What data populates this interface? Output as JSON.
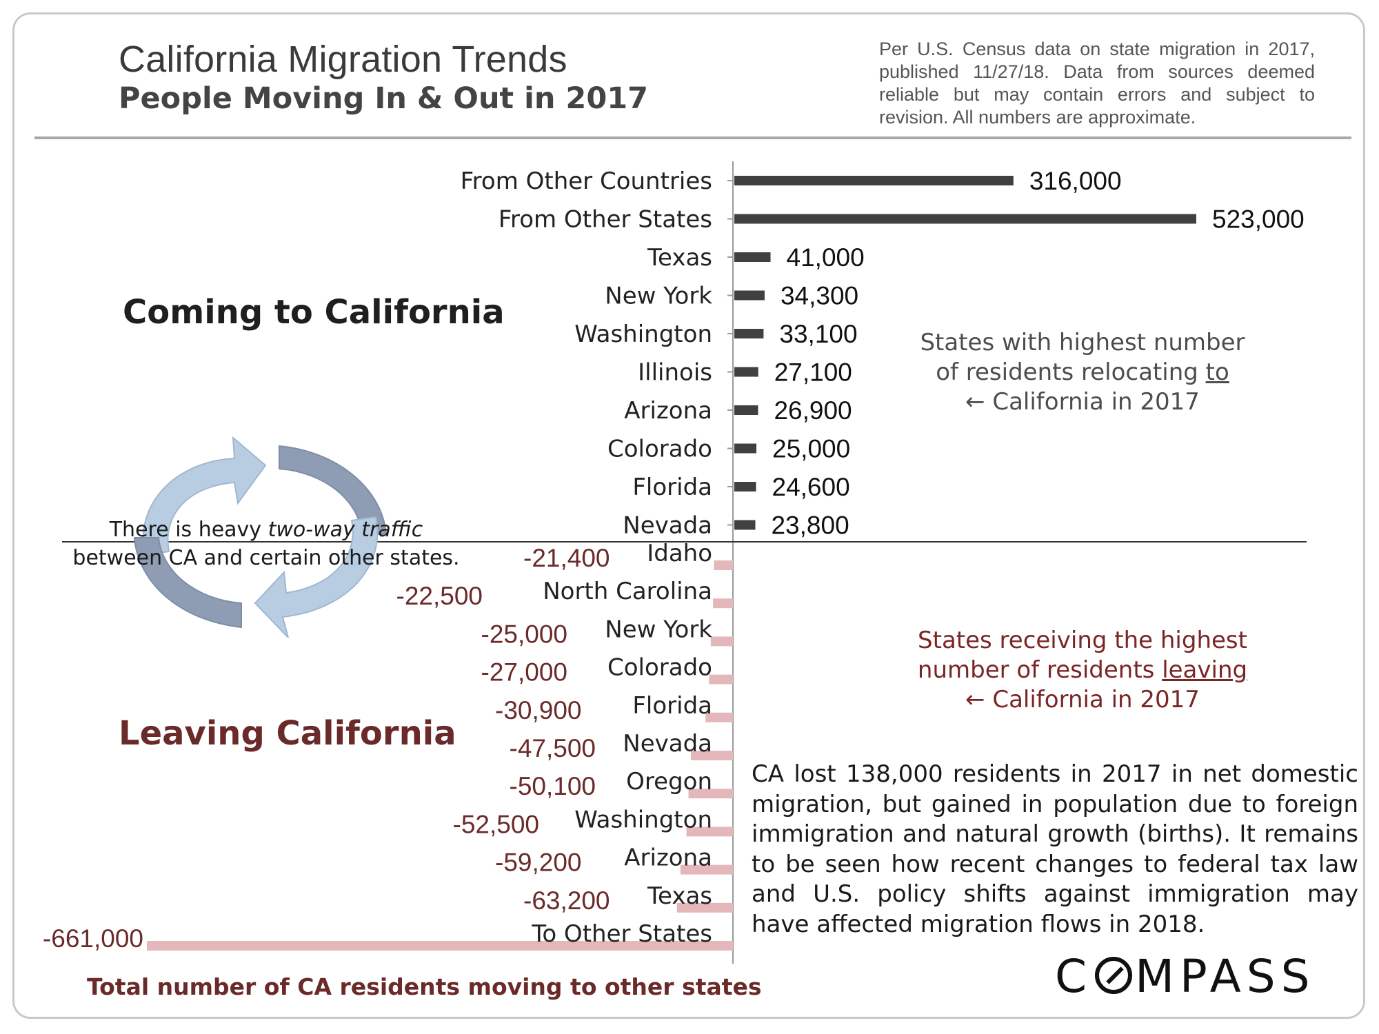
{
  "header": {
    "title": "California Migration Trends",
    "subtitle": "People Moving In & Out in 2017",
    "note": "Per U.S. Census data on state migration in 2017, published 11/27/18. Data from sources deemed reliable but may contain errors and subject to revision. All numbers are approximate."
  },
  "sections": {
    "coming": "Coming to California",
    "leaving": "Leaving California"
  },
  "traffic_note": {
    "line1_pre": "There is heavy ",
    "line1_em": "two-way traffic",
    "line2": "between CA and certain other states."
  },
  "annotation_in": {
    "line1": "States with highest number",
    "line2_pre": "of  residents relocating ",
    "line2_u": "to",
    "line3": "← California in 2017"
  },
  "annotation_out": {
    "line1": "States receiving the highest",
    "line2_pre": "number of residents ",
    "line2_u": "leaving",
    "line3": "← California in 2017"
  },
  "summary": "CA lost  138,000 residents in 2017 in net domestic migration, but gained in population due to foreign immigration and natural growth (births).  It remains to be seen how recent changes to federal tax law and U.S. policy shifts against immigration may have affected migration flows in 2018.",
  "total_caption": "Total number of CA residents moving to other states",
  "logo": {
    "pre": "C",
    "post": "MPASS"
  },
  "colors": {
    "incoming": "#404040",
    "outgoing": "#e4b8bb",
    "outgoing_label": "#6b2a2a",
    "axis": "#9a9a9a"
  },
  "icons": [
    "circular-arrows-icon"
  ],
  "chart_data": {
    "type": "bar",
    "orientation": "horizontal",
    "categories": [
      "From Other Countries",
      "From Other States",
      "Texas",
      "New York",
      "Washington",
      "Illinois",
      "Arizona",
      "Colorado",
      "Florida",
      "Nevada",
      "Idaho",
      "North Carolina",
      "New York",
      "Colorado",
      "Florida",
      "Nevada",
      "Oregon",
      "Washington",
      "Arizona",
      "Texas",
      "To Other States"
    ],
    "values": [
      316000,
      523000,
      41000,
      34300,
      33100,
      27100,
      26900,
      25000,
      24600,
      23800,
      -21400,
      -22500,
      -25000,
      -27000,
      -30900,
      -47500,
      -50100,
      -52500,
      -59200,
      -63200,
      -661000
    ],
    "value_labels": [
      "316,000",
      "523,000",
      "41,000",
      "34,300",
      "33,100",
      "27,100",
      "26,900",
      "25,000",
      "24,600",
      "23,800",
      "-21,400",
      "-22,500",
      "-25,000",
      "-27,000",
      "-30,900",
      "-47,500",
      "-50,100",
      "-52,500",
      "-59,200",
      "-63,200",
      "-661,000"
    ],
    "title": "",
    "xlabel": "",
    "ylabel": "",
    "grid": false
  }
}
